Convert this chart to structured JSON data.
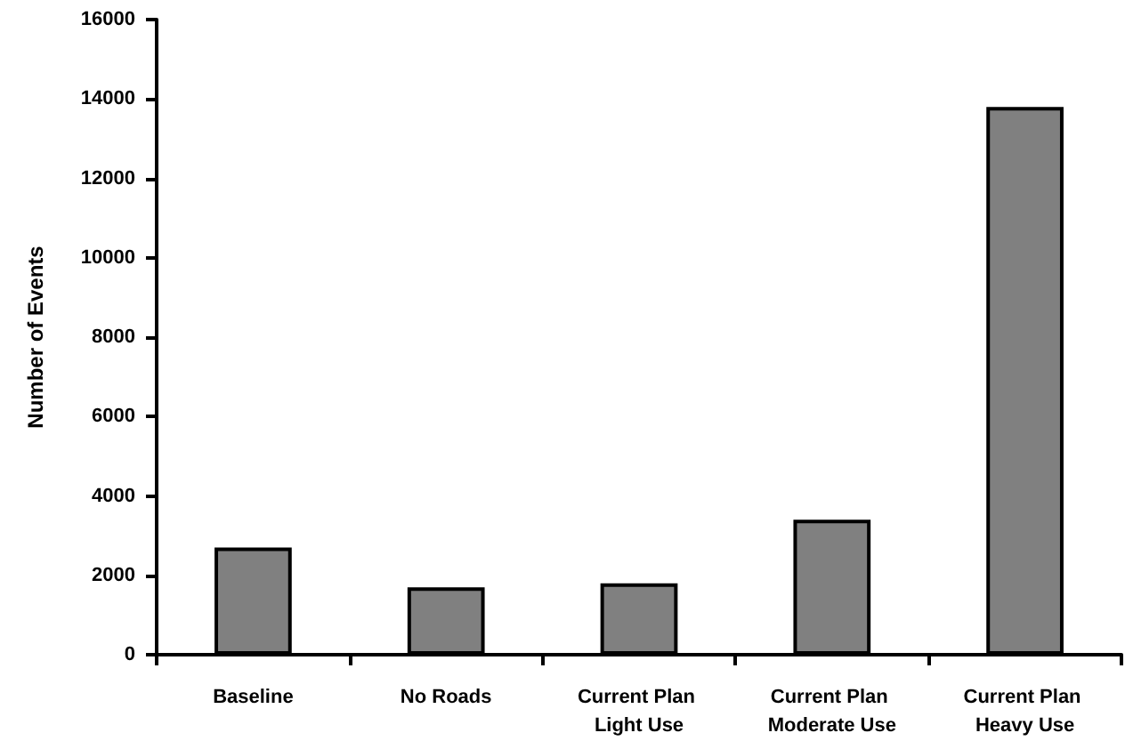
{
  "chart_data": {
    "type": "bar",
    "ylabel": "Number of Events",
    "categories": [
      "Baseline",
      "No Roads",
      "Current Plan Light Use",
      "Current Plan Moderate Use",
      "Current Plan Heavy Use"
    ],
    "values": [
      2700,
      1700,
      1800,
      3400,
      13800
    ],
    "color": "#808080",
    "ylim": [
      0,
      16000
    ],
    "yticks": [
      0,
      2000,
      4000,
      6000,
      8000,
      10000,
      12000,
      14000,
      16000
    ],
    "grid": false
  }
}
